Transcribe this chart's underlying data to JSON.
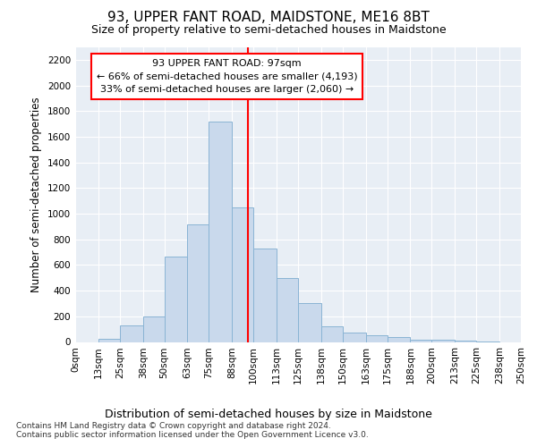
{
  "title": "93, UPPER FANT ROAD, MAIDSTONE, ME16 8BT",
  "subtitle": "Size of property relative to semi-detached houses in Maidstone",
  "xlabel": "Distribution of semi-detached houses by size in Maidstone",
  "ylabel": "Number of semi-detached properties",
  "bin_labels": [
    "0sqm",
    "13sqm",
    "25sqm",
    "38sqm",
    "50sqm",
    "63sqm",
    "75sqm",
    "88sqm",
    "100sqm",
    "113sqm",
    "125sqm",
    "138sqm",
    "150sqm",
    "163sqm",
    "175sqm",
    "188sqm",
    "200sqm",
    "213sqm",
    "225sqm",
    "238sqm",
    "250sqm"
  ],
  "bin_edges": [
    0,
    13,
    25,
    38,
    50,
    63,
    75,
    88,
    100,
    113,
    125,
    138,
    150,
    163,
    175,
    188,
    200,
    213,
    225,
    238,
    250
  ],
  "bar_values": [
    0,
    25,
    130,
    200,
    665,
    920,
    1720,
    1050,
    730,
    500,
    305,
    125,
    70,
    55,
    40,
    20,
    15,
    10,
    5,
    0
  ],
  "bar_color": "#c9d9ec",
  "bar_edge_color": "#8ab4d4",
  "property_size": 97,
  "vline_color": "red",
  "annotation_line1": "93 UPPER FANT ROAD: 97sqm",
  "annotation_line2": "← 66% of semi-detached houses are smaller (4,193)",
  "annotation_line3": "33% of semi-detached houses are larger (2,060) →",
  "annotation_box_color": "white",
  "annotation_box_edge_color": "red",
  "ylim": [
    0,
    2300
  ],
  "yticks": [
    0,
    200,
    400,
    600,
    800,
    1000,
    1200,
    1400,
    1600,
    1800,
    2000,
    2200
  ],
  "footer_line1": "Contains HM Land Registry data © Crown copyright and database right 2024.",
  "footer_line2": "Contains public sector information licensed under the Open Government Licence v3.0.",
  "bg_color": "#ffffff",
  "plot_bg_color": "#e8eef5",
  "grid_color": "#ffffff"
}
